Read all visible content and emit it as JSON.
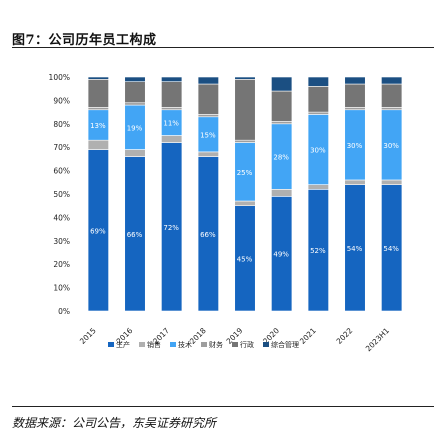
{
  "figure_title": "图7：公司历年员工构成",
  "source": "数据来源：公司公告，东吴证券研究所",
  "chart_data": {
    "type": "bar",
    "stacked": true,
    "percent": true,
    "categories": [
      "2015",
      "2016",
      "2017",
      "2018",
      "2019",
      "2020",
      "2021",
      "2022",
      "2023H1"
    ],
    "y_ticks": [
      "0%",
      "10%",
      "20%",
      "30%",
      "40%",
      "50%",
      "60%",
      "70%",
      "80%",
      "90%",
      "100%"
    ],
    "ylim": [
      0,
      100
    ],
    "legend_position": "bottom",
    "series": [
      {
        "name": "生产",
        "color": "#1565c0",
        "values": [
          69,
          66,
          72,
          66,
          45,
          49,
          52,
          54,
          54
        ],
        "labels": [
          "69%",
          "66%",
          "72%",
          "66%",
          "45%",
          "49%",
          "52%",
          "54%",
          "54%"
        ]
      },
      {
        "name": "销售",
        "color": "#b0b0b0",
        "values": [
          4,
          3,
          3,
          2,
          2,
          3,
          2,
          2,
          2
        ],
        "labels": [
          "",
          "",
          "",
          "",
          "",
          "",
          "",
          "",
          ""
        ]
      },
      {
        "name": "技术",
        "color": "#42a5f5",
        "values": [
          13,
          19,
          11,
          15,
          25,
          28,
          30,
          30,
          30
        ],
        "labels": [
          "13%",
          "19%",
          "11%",
          "15%",
          "25%",
          "28%",
          "30%",
          "30%",
          "30%"
        ]
      },
      {
        "name": "财务",
        "color": "#9e9e9e",
        "values": [
          1,
          1,
          1,
          1,
          1,
          1,
          1,
          1,
          1
        ],
        "labels": [
          "",
          "",
          "",
          "",
          "",
          "",
          "",
          "",
          ""
        ]
      },
      {
        "name": "行政",
        "color": "#757575",
        "values": [
          12,
          9,
          11,
          13,
          26,
          13,
          11,
          10,
          10
        ],
        "labels": [
          "",
          "",
          "",
          "",
          "",
          "",
          "",
          "",
          ""
        ]
      },
      {
        "name": "综合管理",
        "color": "#1b4f82",
        "values": [
          1,
          2,
          2,
          3,
          1,
          6,
          4,
          3,
          3
        ],
        "labels": [
          "",
          "",
          "",
          "",
          "",
          "",
          "",
          "",
          ""
        ]
      }
    ]
  }
}
